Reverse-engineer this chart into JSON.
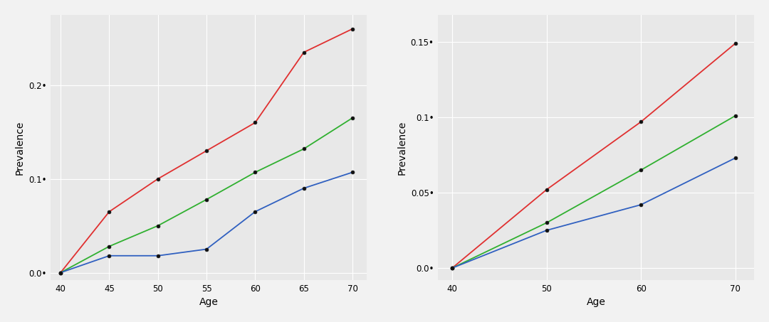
{
  "east_asian": {
    "ages": [
      40,
      45,
      50,
      55,
      60,
      65,
      70
    ],
    "red": [
      0.0,
      0.065,
      0.1,
      0.13,
      0.16,
      0.235,
      0.26
    ],
    "green": [
      0.0,
      0.028,
      0.05,
      0.078,
      0.107,
      0.132,
      0.165
    ],
    "blue": [
      0.0,
      0.018,
      0.018,
      0.025,
      0.065,
      0.09,
      0.107
    ]
  },
  "european": {
    "ages": [
      40,
      50,
      60,
      70
    ],
    "red": [
      0.0,
      0.052,
      0.097,
      0.149
    ],
    "green": [
      0.0,
      0.03,
      0.065,
      0.101
    ],
    "blue": [
      0.0,
      0.025,
      0.042,
      0.073
    ]
  },
  "line_colors": {
    "red": "#e03030",
    "green": "#30b030",
    "blue": "#3060c0"
  },
  "marker": "o",
  "marker_color": "#111111",
  "marker_size": 3.5,
  "linewidth": 1.3,
  "panel_background": "#e8e8e8",
  "figure_background": "#f2f2f2",
  "grid_color": "#ffffff",
  "grid_linewidth": 0.8,
  "xlabel": "Age",
  "ylabel": "Prevalence",
  "xlabel_fontsize": 10,
  "ylabel_fontsize": 10,
  "tick_labelsize": 8.5,
  "left_ylim": [
    -0.008,
    0.275
  ],
  "right_ylim": [
    -0.008,
    0.168
  ],
  "left_yticks": [
    0.0,
    0.1,
    0.2
  ],
  "right_yticks": [
    0.0,
    0.05,
    0.1,
    0.15
  ]
}
